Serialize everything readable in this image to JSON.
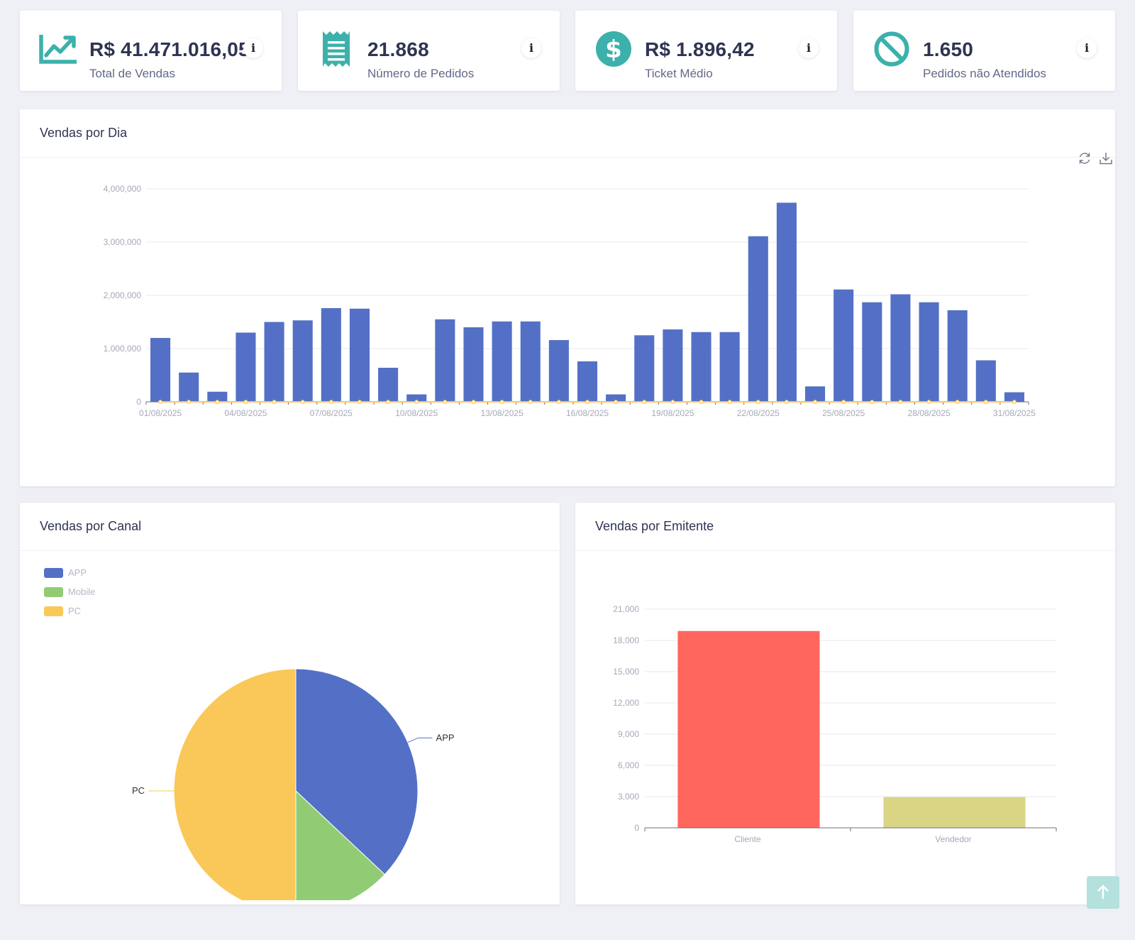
{
  "kpis": [
    {
      "value": "R$ 41.471.016,05",
      "label": "Total de Vendas",
      "icon": "trending-up-chart-icon",
      "info": "i"
    },
    {
      "value": "21.868",
      "label": "Número de Pedidos",
      "icon": "receipt-icon",
      "info": "i"
    },
    {
      "value": "R$ 1.896,42",
      "label": "Ticket Médio",
      "icon": "dollar-circle-icon",
      "info": "i"
    },
    {
      "value": "1.650",
      "label": "Pedidos não Atendidos",
      "icon": "prohibited-icon",
      "info": "i"
    }
  ],
  "colors": {
    "accent": "#3cb1ab",
    "bar_blue": "#5470c6",
    "line_yellow": "#fac858",
    "pie_green": "#91cc75",
    "bar_red": "#ff665e",
    "bar_olive": "#dad485"
  },
  "daily": {
    "title": "Vendas por Dia",
    "toolbar": {
      "refresh_icon": "refresh-icon",
      "download_icon": "download-icon"
    },
    "chart_data": {
      "type": "bar",
      "x": [
        "01/08/2025",
        "02/08/2025",
        "03/08/2025",
        "04/08/2025",
        "05/08/2025",
        "06/08/2025",
        "07/08/2025",
        "08/08/2025",
        "09/08/2025",
        "10/08/2025",
        "11/08/2025",
        "12/08/2025",
        "13/08/2025",
        "14/08/2025",
        "15/08/2025",
        "16/08/2025",
        "17/08/2025",
        "18/08/2025",
        "19/08/2025",
        "20/08/2025",
        "21/08/2025",
        "22/08/2025",
        "23/08/2025",
        "24/08/2025",
        "25/08/2025",
        "26/08/2025",
        "27/08/2025",
        "28/08/2025",
        "29/08/2025",
        "30/08/2025",
        "31/08/2025"
      ],
      "tick_labels": [
        "01/08/2025",
        "04/08/2025",
        "07/08/2025",
        "10/08/2025",
        "13/08/2025",
        "16/08/2025",
        "19/08/2025",
        "22/08/2025",
        "25/08/2025",
        "28/08/2025",
        "31/08/2025"
      ],
      "series": [
        {
          "type": "bar",
          "values": [
            1200000,
            550000,
            190000,
            1300000,
            1500000,
            1530000,
            1760000,
            1750000,
            640000,
            140000,
            1550000,
            1400000,
            1510000,
            1510000,
            1160000,
            760000,
            140000,
            1250000,
            1360000,
            1310000,
            1310000,
            3110000,
            3740000,
            290000,
            2110000,
            1870000,
            2020000,
            1870000,
            1720000,
            780000,
            180000
          ]
        },
        {
          "type": "line",
          "values": [
            0,
            0,
            0,
            0,
            0,
            0,
            0,
            0,
            0,
            0,
            0,
            0,
            0,
            0,
            0,
            0,
            0,
            0,
            0,
            0,
            0,
            0,
            0,
            0,
            0,
            0,
            0,
            0,
            0,
            0,
            0
          ]
        }
      ],
      "y_ticks": [
        "0",
        "1,000,000",
        "2,000,000",
        "3,000,000",
        "4,000,000"
      ],
      "ylim": [
        0,
        4000000
      ],
      "grid": true
    }
  },
  "channel": {
    "title": "Vendas por Canal",
    "chart_data": {
      "type": "pie",
      "legend": [
        "APP",
        "Mobile",
        "PC"
      ],
      "labels": [
        "APP",
        "Mobile",
        "PC"
      ],
      "values": [
        37,
        13,
        50
      ],
      "legend_position": "top-left"
    }
  },
  "issuer": {
    "title": "Vendas por Emitente",
    "chart_data": {
      "type": "bar",
      "categories": [
        "Cliente",
        "Vendedor"
      ],
      "values": [
        18900,
        2950
      ],
      "y_ticks": [
        "0",
        "3,000",
        "6,000",
        "9,000",
        "12,000",
        "15,000",
        "18,000",
        "21,000"
      ],
      "ylim": [
        0,
        21000
      ],
      "grid": true
    }
  },
  "scroll_top_icon": "arrow-up-icon"
}
